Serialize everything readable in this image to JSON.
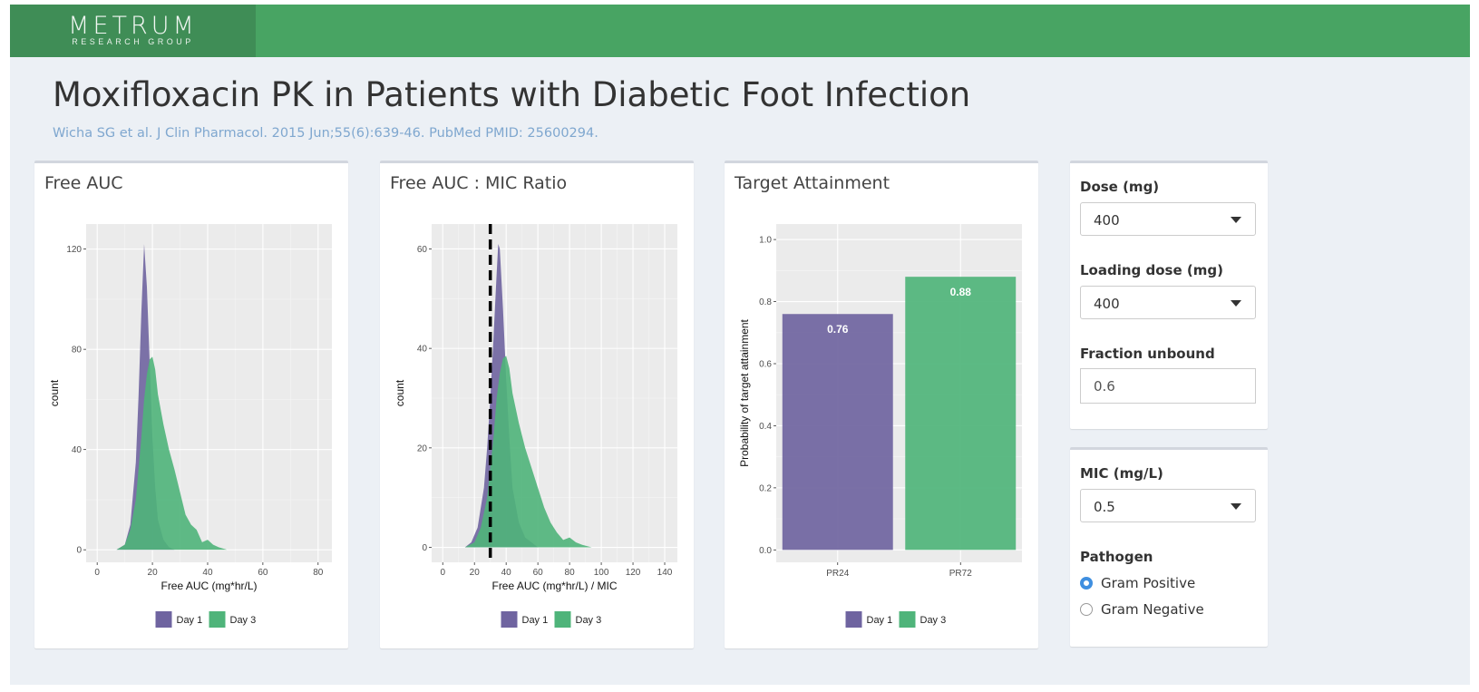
{
  "header": {
    "logo_text": "METRUM",
    "logo_subtext": "RESEARCH GROUP",
    "brand_color": "#48a463"
  },
  "page": {
    "title": "Moxifloxacin PK in Patients with Diabetic Foot Infection",
    "citation": "Wicha SG et al. J Clin Pharmacol. 2015 Jun;55(6):639-46. PubMed PMID: 25600294."
  },
  "colors": {
    "day1": "#6f64a0",
    "day3": "#4fb47a",
    "panel_bg": "#ebebeb",
    "reference_line": "#000000",
    "radio_selected": "#3f8fe0"
  },
  "panels": {
    "free_auc": {
      "title": "Free AUC"
    },
    "ratio": {
      "title": "Free AUC : MIC Ratio"
    },
    "target": {
      "title": "Target Attainment"
    }
  },
  "controls": {
    "dose": {
      "label": "Dose (mg)",
      "value": "400"
    },
    "loading_dose": {
      "label": "Loading dose (mg)",
      "value": "400"
    },
    "fraction_unbound": {
      "label": "Fraction unbound",
      "value": "0.6"
    },
    "mic": {
      "label": "MIC (mg/L)",
      "value": "0.5"
    },
    "pathogen": {
      "label": "Pathogen",
      "options": [
        "Gram Positive",
        "Gram Negative"
      ],
      "selected": "Gram Positive"
    }
  },
  "chart_data": [
    {
      "type": "area",
      "title": "Free AUC",
      "xlabel": "Free AUC (mg*hr/L)",
      "ylabel": "count",
      "xlim": [
        -4,
        85
      ],
      "ylim": [
        -5,
        130
      ],
      "xticks": [
        0,
        20,
        40,
        60,
        80
      ],
      "yticks": [
        0,
        40,
        80,
        120
      ],
      "grid": true,
      "legend": {
        "position": "bottom",
        "entries": [
          "Day 1",
          "Day 3"
        ]
      },
      "series": [
        {
          "name": "Day 1",
          "color": "#6f64a0",
          "x": [
            7,
            10,
            12,
            14,
            15,
            16,
            17,
            18,
            19,
            20,
            21,
            22,
            24,
            26,
            28,
            30
          ],
          "y": [
            0,
            2,
            10,
            35,
            62,
            95,
            122,
            105,
            75,
            45,
            25,
            12,
            4,
            1,
            0,
            0
          ]
        },
        {
          "name": "Day 3",
          "color": "#4fb47a",
          "x": [
            7,
            10,
            12,
            14,
            16,
            17,
            18,
            19,
            20,
            21,
            22,
            24,
            26,
            28,
            30,
            32,
            34,
            36,
            38,
            40,
            42,
            44,
            47
          ],
          "y": [
            0,
            2,
            8,
            20,
            45,
            60,
            70,
            76,
            77,
            72,
            62,
            50,
            40,
            32,
            23,
            14,
            10,
            8,
            3,
            4,
            2,
            1,
            0
          ]
        }
      ]
    },
    {
      "type": "area",
      "title": "Free AUC : MIC Ratio",
      "xlabel": "Free AUC (mg*hr/L) / MIC",
      "ylabel": "count",
      "xlim": [
        -7,
        148
      ],
      "ylim": [
        -3,
        65
      ],
      "xticks": [
        0,
        20,
        40,
        60,
        80,
        100,
        120,
        140
      ],
      "yticks": [
        0,
        20,
        40,
        60
      ],
      "grid": true,
      "reference_line": {
        "x": 30,
        "style": "dashed"
      },
      "legend": {
        "position": "bottom",
        "entries": [
          "Day 1",
          "Day 3"
        ]
      },
      "series": [
        {
          "name": "Day 1",
          "color": "#6f64a0",
          "x": [
            14,
            18,
            22,
            26,
            28,
            30,
            32,
            34,
            35,
            36,
            38,
            40,
            42,
            44,
            48,
            52,
            56,
            60
          ],
          "y": [
            0,
            1,
            4,
            12,
            20,
            30,
            42,
            55,
            61,
            60,
            48,
            34,
            22,
            12,
            5,
            2,
            1,
            0
          ]
        },
        {
          "name": "Day 3",
          "color": "#4fb47a",
          "x": [
            14,
            20,
            24,
            28,
            32,
            34,
            36,
            38,
            40,
            42,
            44,
            48,
            52,
            56,
            60,
            64,
            68,
            72,
            76,
            80,
            84,
            88,
            94
          ],
          "y": [
            0,
            1,
            4,
            10,
            22,
            30,
            35,
            38,
            38.5,
            36,
            31,
            25,
            20,
            16,
            12,
            8,
            5,
            3,
            1.5,
            2,
            1,
            0.5,
            0
          ]
        }
      ]
    },
    {
      "type": "bar",
      "title": "Target Attainment",
      "xlabel": "",
      "ylabel": "Probability of target attainment",
      "categories": [
        "PR24",
        "PR72"
      ],
      "ylim": [
        -0.04,
        1.05
      ],
      "yticks": [
        0.0,
        0.2,
        0.4,
        0.6,
        0.8,
        1.0
      ],
      "ytick_labels": [
        "0.0",
        "0.2",
        "0.4",
        "0.6",
        "0.8",
        "1.0"
      ],
      "grid": true,
      "legend": {
        "position": "bottom",
        "entries": [
          "Day 1",
          "Day 3"
        ]
      },
      "series": [
        {
          "name": "Day 1",
          "color": "#6f64a0",
          "values": [
            0.76,
            null
          ]
        },
        {
          "name": "Day 3",
          "color": "#4fb47a",
          "values": [
            null,
            0.88
          ]
        }
      ],
      "data_labels": [
        "0.76",
        "0.88"
      ]
    }
  ]
}
